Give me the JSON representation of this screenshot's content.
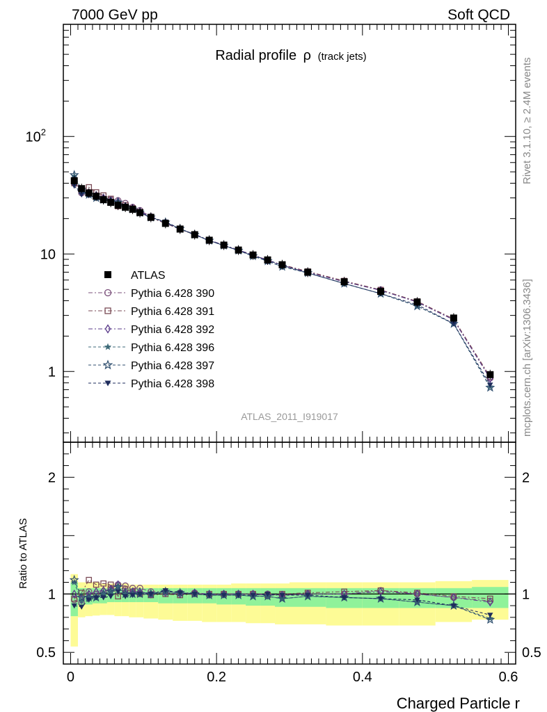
{
  "header": {
    "left": "7000 GeV pp",
    "right": "Soft QCD"
  },
  "side_labels": {
    "rivet": "Rivet 3.1.10, ≥ 2.4M events",
    "mcplots": "mcplots.cern.ch [arXiv:1306.3436]"
  },
  "chart_data": [
    {
      "type": "line",
      "panel": "main",
      "title": "Radial profile",
      "title_symbol": "ρ",
      "title_suffix": "(track jets)",
      "analysis_tag": "ATLAS_2011_I919017",
      "yscale": "log",
      "xlim": [
        -0.01,
        0.61
      ],
      "ylim": [
        0.25,
        900
      ],
      "yticks": [
        {
          "value": 1,
          "label": "1"
        },
        {
          "value": 10,
          "label": "10"
        },
        {
          "value": 100,
          "label": "10",
          "sup": "2"
        }
      ],
      "legend_placement": "left-middle",
      "x": [
        0.005,
        0.015,
        0.025,
        0.035,
        0.045,
        0.055,
        0.065,
        0.075,
        0.085,
        0.095,
        0.11,
        0.13,
        0.15,
        0.17,
        0.19,
        0.21,
        0.23,
        0.25,
        0.27,
        0.29,
        0.325,
        0.375,
        0.425,
        0.475,
        0.525,
        0.575
      ],
      "series": [
        {
          "name": "ATLAS",
          "marker": "square-filled",
          "color": "#000000",
          "values": [
            42,
            36,
            33,
            31,
            29,
            27.5,
            26,
            25,
            24,
            22.5,
            20.5,
            18.2,
            16.3,
            14.6,
            13.1,
            11.9,
            10.8,
            9.8,
            8.9,
            8.1,
            7.0,
            5.8,
            4.8,
            3.9,
            2.85,
            0.94
          ]
        },
        {
          "name": "Pythia 6.428 390",
          "marker": "circle-open",
          "color": "#7a4f7a",
          "values": [
            40,
            33,
            33.5,
            31,
            29.5,
            29,
            28.5,
            27,
            25,
            23.5,
            20.8,
            18.5,
            16.4,
            14.7,
            13.0,
            11.9,
            10.8,
            9.8,
            8.9,
            8.0,
            7.0,
            5.8,
            4.95,
            3.9,
            2.75,
            0.88
          ]
        },
        {
          "name": "Pythia 6.428 391",
          "marker": "square-open",
          "color": "#7a4a55",
          "values": [
            40,
            36,
            37,
            33.5,
            31.5,
            29.5,
            25.5,
            26,
            24.5,
            22.5,
            20.3,
            18.2,
            16.2,
            14.6,
            13.1,
            11.9,
            10.8,
            9.8,
            8.8,
            8.1,
            7.1,
            5.9,
            4.95,
            3.95,
            2.8,
            0.9
          ]
        },
        {
          "name": "Pythia 6.428 392",
          "marker": "diamond-open",
          "color": "#5a3a8a",
          "values": [
            42,
            34,
            33,
            31.5,
            30,
            28.5,
            28,
            25.5,
            24.5,
            23,
            20.6,
            18.4,
            16.3,
            14.7,
            13.1,
            11.9,
            10.8,
            9.8,
            8.8,
            8.0,
            7.0,
            5.8,
            4.9,
            3.9,
            2.75,
            0.87
          ]
        },
        {
          "name": "Pythia 6.428 396",
          "marker": "star-filled",
          "color": "#3d6a78",
          "values": [
            46,
            34,
            32,
            30,
            29,
            28,
            27.5,
            25,
            24,
            22.5,
            20.5,
            18.6,
            16.4,
            14.6,
            13.0,
            11.8,
            10.7,
            9.6,
            8.7,
            7.8,
            6.9,
            5.6,
            4.6,
            3.6,
            2.55,
            0.74
          ]
        },
        {
          "name": "Pythia 6.428 397",
          "marker": "star-open",
          "color": "#2e4e6e",
          "values": [
            47,
            35,
            32,
            30,
            29,
            28,
            27.5,
            25,
            24,
            22.5,
            20.5,
            18.6,
            16.4,
            14.6,
            13.0,
            11.8,
            10.7,
            9.6,
            8.7,
            7.8,
            6.9,
            5.6,
            4.6,
            3.6,
            2.55,
            0.73
          ]
        },
        {
          "name": "Pythia 6.428 398",
          "marker": "triangle-down-filled",
          "color": "#1e2c5c",
          "values": [
            38,
            32,
            31.5,
            30,
            28,
            27,
            26.5,
            24.5,
            24,
            22.5,
            20.5,
            18.8,
            16.4,
            14.6,
            13.0,
            11.8,
            10.7,
            9.7,
            8.9,
            8.0,
            6.9,
            5.6,
            4.6,
            3.7,
            2.55,
            0.77
          ]
        }
      ]
    },
    {
      "type": "line",
      "panel": "ratio",
      "ylabel": "Ratio to ATLAS",
      "xlabel": "Charged Particle r",
      "xlim": [
        -0.01,
        0.61
      ],
      "ylim": [
        0.4,
        2.3
      ],
      "yticks": [
        {
          "value": 0.5,
          "label": "0.5"
        },
        {
          "value": 1,
          "label": "1"
        },
        {
          "value": 2,
          "label": "2"
        }
      ],
      "xticks": [
        {
          "value": 0,
          "label": "0"
        },
        {
          "value": 0.2,
          "label": "0.2"
        },
        {
          "value": 0.4,
          "label": "0.4"
        },
        {
          "value": 0.6,
          "label": "0.6"
        }
      ],
      "bin_edges": [
        0.0,
        0.01,
        0.02,
        0.03,
        0.04,
        0.05,
        0.06,
        0.07,
        0.08,
        0.09,
        0.1,
        0.12,
        0.14,
        0.16,
        0.18,
        0.2,
        0.22,
        0.24,
        0.26,
        0.28,
        0.3,
        0.35,
        0.4,
        0.45,
        0.5,
        0.55,
        0.6
      ],
      "band_yellow": {
        "low": [
          0.55,
          0.8,
          0.81,
          0.815,
          0.82,
          0.82,
          0.81,
          0.81,
          0.8,
          0.8,
          0.79,
          0.78,
          0.77,
          0.77,
          0.76,
          0.76,
          0.76,
          0.75,
          0.75,
          0.74,
          0.74,
          0.73,
          0.73,
          0.73,
          0.76,
          0.78
        ],
        "high": [
          1.17,
          1.1,
          1.1,
          1.1,
          1.09,
          1.09,
          1.09,
          1.09,
          1.08,
          1.08,
          1.08,
          1.08,
          1.08,
          1.08,
          1.08,
          1.08,
          1.09,
          1.09,
          1.09,
          1.09,
          1.1,
          1.1,
          1.1,
          1.1,
          1.11,
          1.12
        ]
      },
      "band_green": {
        "low": [
          0.81,
          0.91,
          0.91,
          0.92,
          0.92,
          0.93,
          0.93,
          0.93,
          0.93,
          0.93,
          0.93,
          0.92,
          0.92,
          0.92,
          0.92,
          0.91,
          0.91,
          0.9,
          0.9,
          0.89,
          0.89,
          0.88,
          0.88,
          0.88,
          0.88,
          0.88
        ],
        "high": [
          1.1,
          1.05,
          1.05,
          1.05,
          1.05,
          1.05,
          1.05,
          1.05,
          1.05,
          1.05,
          1.05,
          1.05,
          1.05,
          1.05,
          1.05,
          1.05,
          1.05,
          1.05,
          1.05,
          1.05,
          1.05,
          1.05,
          1.05,
          1.05,
          1.05,
          1.06
        ]
      },
      "x": [
        0.005,
        0.015,
        0.025,
        0.035,
        0.045,
        0.055,
        0.065,
        0.075,
        0.085,
        0.095,
        0.11,
        0.13,
        0.15,
        0.17,
        0.19,
        0.21,
        0.23,
        0.25,
        0.27,
        0.29,
        0.325,
        0.375,
        0.425,
        0.475,
        0.525,
        0.575
      ],
      "series": [
        {
          "name": "Pythia 6.428 390",
          "marker": "circle-open",
          "color": "#7a4f7a",
          "values": [
            0.95,
            0.92,
            1.02,
            1.0,
            1.02,
            1.05,
            1.08,
            1.07,
            1.05,
            1.05,
            1.02,
            1.02,
            1.01,
            1.01,
            0.99,
            1.0,
            1.0,
            1.0,
            1.0,
            0.99,
            1.0,
            1.0,
            1.03,
            1.0,
            0.97,
            0.94
          ]
        },
        {
          "name": "Pythia 6.428 391",
          "marker": "square-open",
          "color": "#7a4a55",
          "values": [
            0.96,
            1.01,
            1.12,
            1.08,
            1.09,
            1.08,
            0.98,
            1.04,
            1.02,
            1.0,
            0.99,
            1.0,
            0.99,
            1.0,
            1.0,
            1.0,
            1.0,
            1.0,
            0.99,
            1.0,
            1.01,
            1.02,
            1.03,
            1.01,
            0.98,
            0.96
          ]
        },
        {
          "name": "Pythia 6.428 392",
          "marker": "diamond-open",
          "color": "#5a3a8a",
          "values": [
            1.0,
            0.95,
            1.0,
            1.02,
            1.03,
            1.04,
            1.08,
            1.02,
            1.02,
            1.02,
            1.0,
            1.01,
            1.0,
            1.01,
            1.0,
            1.0,
            1.0,
            1.0,
            0.99,
            0.99,
            1.0,
            1.0,
            1.02,
            1.0,
            0.97,
            0.93
          ]
        },
        {
          "name": "Pythia 6.428 396",
          "marker": "star-filled",
          "color": "#3d6a78",
          "values": [
            1.1,
            0.94,
            0.97,
            0.97,
            1.0,
            1.02,
            1.06,
            1.0,
            1.0,
            1.0,
            1.0,
            1.02,
            1.01,
            1.0,
            0.99,
            0.99,
            0.99,
            0.98,
            0.98,
            0.96,
            0.98,
            0.97,
            0.96,
            0.93,
            0.9,
            0.79
          ]
        },
        {
          "name": "Pythia 6.428 397",
          "marker": "star-open",
          "color": "#2e4e6e",
          "values": [
            1.12,
            0.97,
            0.97,
            0.97,
            1.0,
            1.02,
            1.06,
            1.0,
            1.0,
            1.0,
            1.0,
            1.02,
            1.01,
            1.0,
            0.99,
            0.99,
            0.99,
            0.98,
            0.98,
            0.96,
            0.98,
            0.97,
            0.96,
            0.93,
            0.9,
            0.78
          ]
        },
        {
          "name": "Pythia 6.428 398",
          "marker": "triangle-down-filled",
          "color": "#1e2c5c",
          "values": [
            0.9,
            0.89,
            0.95,
            0.97,
            0.97,
            0.98,
            1.02,
            0.98,
            0.99,
            1.0,
            1.0,
            1.03,
            1.01,
            1.0,
            0.99,
            0.99,
            0.99,
            0.99,
            1.0,
            0.99,
            0.99,
            0.97,
            0.96,
            0.95,
            0.9,
            0.82
          ]
        }
      ]
    }
  ]
}
